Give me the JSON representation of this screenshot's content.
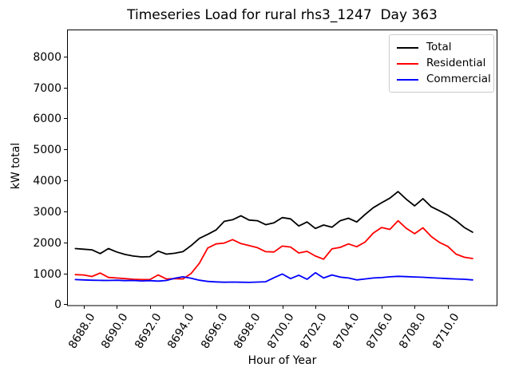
{
  "chart_data": {
    "type": "line",
    "title": "Timeseries Load for rural rhs3_1247  Day 363",
    "xlabel": "Hour of Year",
    "ylabel": "kW total",
    "grid": false,
    "legend_position": "upper right",
    "xlim": [
      8687.0,
      8713.0
    ],
    "ylim": [
      -40,
      8870
    ],
    "x_ticks": [
      8688,
      8690,
      8692,
      8694,
      8696,
      8698,
      8700,
      8702,
      8704,
      8706,
      8708,
      8710
    ],
    "x_tick_labels": [
      "8688.0",
      "8690.0",
      "8692.0",
      "8694.0",
      "8696.0",
      "8698.0",
      "8700.0",
      "8702.0",
      "8704.0",
      "8706.0",
      "8708.0",
      "8710.0"
    ],
    "y_ticks": [
      0,
      1000,
      2000,
      3000,
      4000,
      5000,
      6000,
      7000,
      8000
    ],
    "y_tick_labels": [
      "0",
      "1000",
      "2000",
      "3000",
      "4000",
      "5000",
      "6000",
      "7000",
      "8000"
    ],
    "x": [
      8687.5,
      8688.0,
      8688.5,
      8689.0,
      8689.5,
      8690.0,
      8690.5,
      8691.0,
      8691.5,
      8692.0,
      8692.5,
      8693.0,
      8693.5,
      8694.0,
      8694.5,
      8695.0,
      8695.5,
      8696.0,
      8696.5,
      8697.0,
      8697.5,
      8698.0,
      8698.5,
      8699.0,
      8699.5,
      8700.0,
      8700.5,
      8701.0,
      8701.5,
      8702.0,
      8702.5,
      8703.0,
      8703.5,
      8704.0,
      8704.5,
      8705.0,
      8705.5,
      8706.0,
      8706.5,
      8707.0,
      8707.5,
      8708.0,
      8708.5,
      8709.0,
      8709.5,
      8710.0,
      8710.5,
      8711.0,
      8711.5
    ],
    "series": [
      {
        "name": "Total",
        "color": "#000000",
        "values": [
          1800,
          1780,
          1760,
          1640,
          1800,
          1690,
          1610,
          1560,
          1530,
          1540,
          1720,
          1620,
          1650,
          1700,
          1900,
          2130,
          2260,
          2400,
          2680,
          2730,
          2860,
          2720,
          2700,
          2570,
          2630,
          2800,
          2760,
          2530,
          2660,
          2450,
          2560,
          2490,
          2700,
          2780,
          2660,
          2900,
          3120,
          3280,
          3430,
          3640,
          3390,
          3180,
          3410,
          3150,
          3020,
          2880,
          2700,
          2480,
          2330
        ]
      },
      {
        "name": "Residential",
        "color": "#ff0000",
        "values": [
          960,
          950,
          900,
          1010,
          870,
          850,
          830,
          810,
          800,
          800,
          950,
          820,
          830,
          820,
          1000,
          1330,
          1820,
          1950,
          1980,
          2090,
          1960,
          1900,
          1830,
          1700,
          1690,
          1880,
          1850,
          1660,
          1710,
          1560,
          1460,
          1790,
          1840,
          1950,
          1860,
          2010,
          2300,
          2480,
          2420,
          2700,
          2450,
          2280,
          2470,
          2190,
          2000,
          1870,
          1620,
          1520,
          1480
        ]
      },
      {
        "name": "Commercial",
        "color": "#0000ff",
        "values": [
          800,
          790,
          780,
          775,
          770,
          780,
          765,
          770,
          755,
          765,
          750,
          770,
          840,
          890,
          840,
          780,
          740,
          725,
          715,
          720,
          715,
          710,
          720,
          730,
          860,
          980,
          830,
          940,
          810,
          1020,
          850,
          950,
          880,
          850,
          790,
          820,
          850,
          865,
          890,
          905,
          895,
          885,
          875,
          860,
          845,
          830,
          820,
          810,
          790
        ]
      }
    ]
  }
}
